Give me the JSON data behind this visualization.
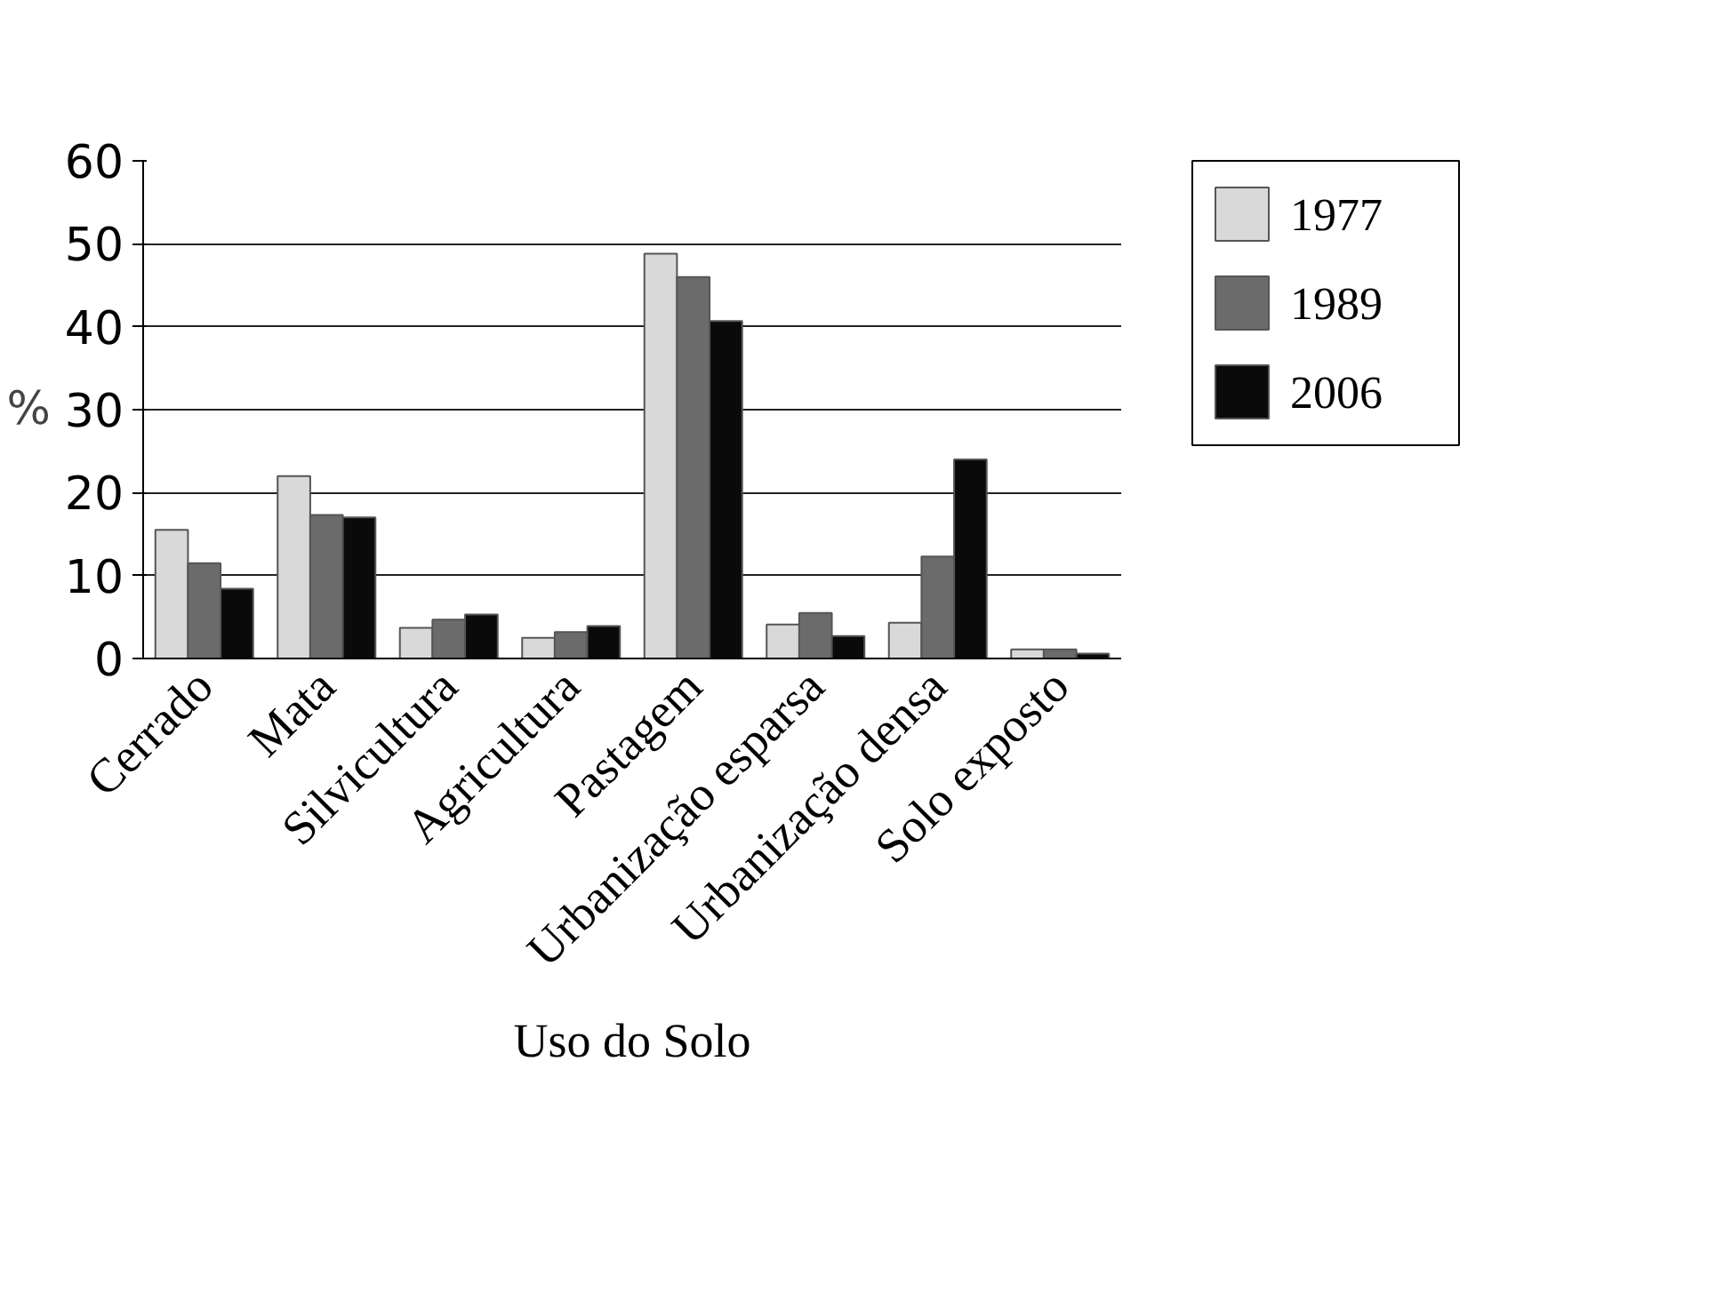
{
  "chart_data": {
    "type": "bar",
    "xlabel": "Uso do Solo",
    "ylabel": "%",
    "categories": [
      "Cerrado",
      "Mata",
      "Silvicultura",
      "Agricultura",
      "Pastagem",
      "Urbanização esparsa",
      "Urbanização densa",
      "Solo exposto"
    ],
    "series": [
      {
        "name": "1977",
        "color": "#d9d9d9",
        "values": [
          15.5,
          22,
          3.7,
          2.5,
          48.8,
          4.1,
          4.3,
          1.1
        ]
      },
      {
        "name": "1989",
        "color": "#6b6b6b",
        "values": [
          11.5,
          17.3,
          4.7,
          3.2,
          46,
          5.5,
          12.3,
          1.1
        ]
      },
      {
        "name": "2006",
        "color": "#0a0a0a",
        "values": [
          8.4,
          17,
          5.3,
          3.9,
          40.7,
          2.7,
          24,
          0.6
        ]
      }
    ],
    "ylim": [
      0,
      60
    ],
    "yticks": [
      0,
      10,
      20,
      30,
      40,
      50,
      60
    ],
    "grid": "y",
    "legend": "right"
  }
}
